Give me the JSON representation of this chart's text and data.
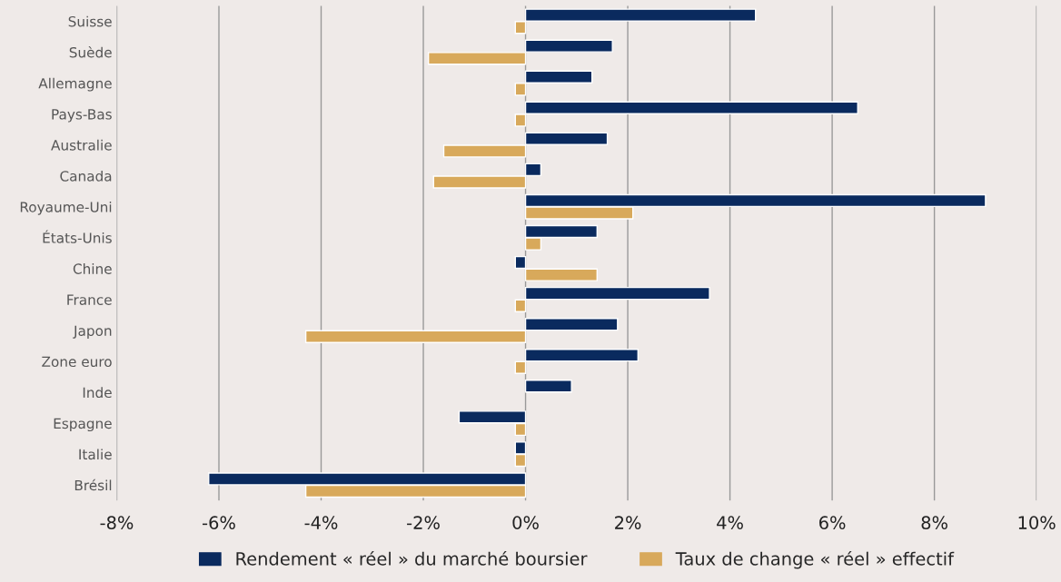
{
  "chart_data": {
    "type": "bar",
    "orientation": "horizontal",
    "categories": [
      "Suisse",
      "Suède",
      "Allemagne",
      "Pays-Bas",
      "Australie",
      "Canada",
      "Royaume-Uni",
      "États-Unis",
      "Chine",
      "France",
      "Japon",
      "Zone euro",
      "Inde",
      "Espagne",
      "Italie",
      "Brésil"
    ],
    "series": [
      {
        "name": "Rendement « réel » du marché boursier",
        "color": "#0a2a5e",
        "values": [
          4.5,
          1.7,
          1.3,
          6.5,
          1.6,
          0.3,
          9.0,
          1.4,
          -0.2,
          3.6,
          1.8,
          2.2,
          0.9,
          -1.3,
          -0.2,
          -6.2
        ]
      },
      {
        "name": "Taux de change « réel » effectif",
        "color": "#d8a95b",
        "values": [
          -0.2,
          -1.9,
          -0.2,
          -0.2,
          -1.6,
          -1.8,
          2.1,
          0.3,
          1.4,
          -0.2,
          -4.3,
          -0.2,
          null,
          -0.2,
          -0.2,
          -4.3
        ]
      }
    ],
    "xlim": [
      -8,
      10
    ],
    "xticks": [
      {
        "value": -8,
        "label": "-8%"
      },
      {
        "value": -6,
        "label": "-6%"
      },
      {
        "value": -4,
        "label": "-4%"
      },
      {
        "value": -2,
        "label": "-2%"
      },
      {
        "value": 0,
        "label": "0%"
      },
      {
        "value": 2,
        "label": "2%"
      },
      {
        "value": 4,
        "label": "4%"
      },
      {
        "value": 6,
        "label": "6%"
      },
      {
        "value": 8,
        "label": "8%"
      },
      {
        "value": 10,
        "label": "10%"
      }
    ],
    "grid": "x",
    "legend": "bottom"
  }
}
